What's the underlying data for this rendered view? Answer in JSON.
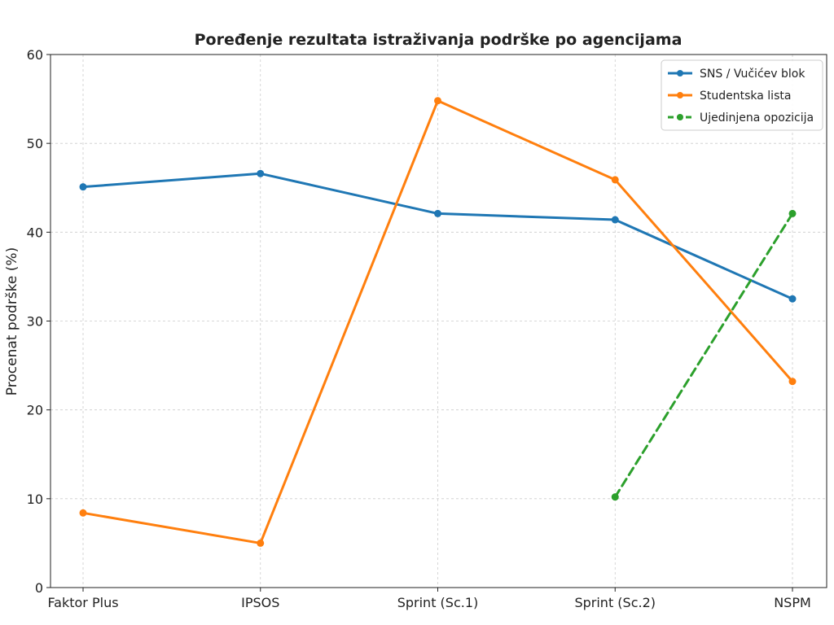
{
  "chart_data": {
    "type": "line",
    "title": "Poređenje rezultata istraživanja podrške po agencijama",
    "xlabel": "",
    "ylabel": "Procenat podrške (%)",
    "categories": [
      "Faktor Plus",
      "IPSOS",
      "Sprint (Sc.1)",
      "Sprint (Sc.2)",
      "NSPM"
    ],
    "ylim": [
      0,
      60
    ],
    "yticks": [
      "0",
      "10",
      "20",
      "30",
      "40",
      "50",
      "60"
    ],
    "grid": true,
    "legend_position": "top-right",
    "series": [
      {
        "name": "SNS / Vučićev blok",
        "color": "#1f77b4",
        "dashed": false,
        "values": [
          45.1,
          46.6,
          42.1,
          41.4,
          32.5
        ]
      },
      {
        "name": "Studentska lista",
        "color": "#ff7f0e",
        "dashed": false,
        "values": [
          8.4,
          5.0,
          54.8,
          45.9,
          23.2
        ]
      },
      {
        "name": "Ujedinjena opozicija",
        "color": "#2ca02c",
        "dashed": true,
        "values": [
          null,
          null,
          null,
          10.2,
          42.1
        ]
      }
    ]
  }
}
